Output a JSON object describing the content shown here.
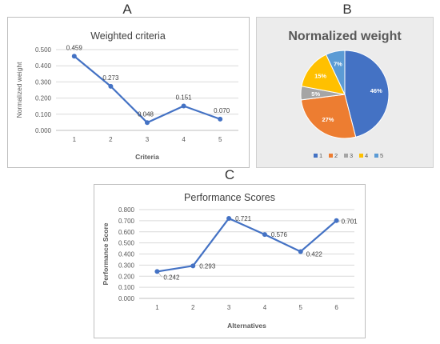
{
  "panels": {
    "a": "A",
    "b": "B",
    "c": "C"
  },
  "colors": {
    "line": "#4472c4",
    "pie": [
      "#4472c4",
      "#ed7d31",
      "#a5a5a5",
      "#ffc000",
      "#5b9bd5"
    ]
  },
  "chart_data": [
    {
      "type": "line",
      "title": "Weighted criteria",
      "xlabel": "Criteria",
      "ylabel": "Normalized weight",
      "categories": [
        "1",
        "2",
        "3",
        "4",
        "5"
      ],
      "values": [
        0.459,
        0.273,
        0.048,
        0.151,
        0.07
      ],
      "data_labels": [
        "0.459",
        "0.273",
        "0.048",
        "0.151",
        "0.070"
      ],
      "ylim": [
        0,
        0.5
      ],
      "yticks": [
        "0.000",
        "0.100",
        "0.200",
        "0.300",
        "0.400",
        "0.500"
      ],
      "grid": true,
      "legend": "none"
    },
    {
      "type": "pie",
      "title": "Normalized weight",
      "categories": [
        "1",
        "2",
        "3",
        "4",
        "5"
      ],
      "values": [
        46,
        27,
        5,
        15,
        7
      ],
      "data_labels": [
        "46%",
        "27%",
        "5%",
        "15%",
        "7%"
      ],
      "legend": "bottom"
    },
    {
      "type": "line",
      "title": "Performance Scores",
      "xlabel": "Alternatives",
      "ylabel": "Performance Score",
      "categories": [
        "1",
        "2",
        "3",
        "4",
        "5",
        "6"
      ],
      "values": [
        0.242,
        0.293,
        0.721,
        0.576,
        0.422,
        0.701
      ],
      "data_labels": [
        "0.242",
        "0.293",
        "0.721",
        "0.576",
        "0.422",
        "0.701"
      ],
      "ylim": [
        0,
        0.8
      ],
      "yticks": [
        "0.000",
        "0.100",
        "0.200",
        "0.300",
        "0.400",
        "0.500",
        "0.600",
        "0.700",
        "0.800"
      ],
      "grid": true,
      "legend": "none"
    }
  ]
}
